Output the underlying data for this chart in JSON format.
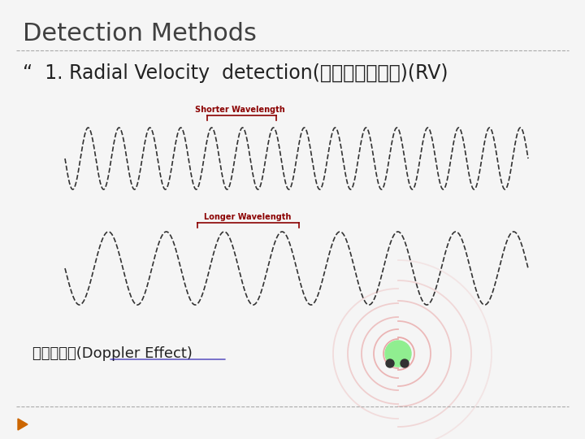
{
  "title": "Detection Methods",
  "title_fontsize": 22,
  "title_color": "#404040",
  "bg_color": "#f5f5f5",
  "bullet_text": "“  1. Radial Velocity  detection(徑向速度測量法)(RV)",
  "bullet_fontsize": 17,
  "bullet_color": "#222222",
  "shorter_label": "Shorter Wavelength",
  "longer_label": "Longer Wavelength",
  "label_color": "#8B0000",
  "label_fontsize": 7,
  "doppler_text": "多普勒效應(Doppler Effect)",
  "doppler_fontsize": 13,
  "doppler_color": "#222222",
  "link_color": "#1a0dab",
  "title_line_color": "#aaaaaa",
  "bottom_line_color": "#aaaaaa",
  "wave_color": "#333333",
  "wave_linewidth": 1.2,
  "doppler_wave_color": "#e8a0a0",
  "triangle_color": "#cc6600"
}
